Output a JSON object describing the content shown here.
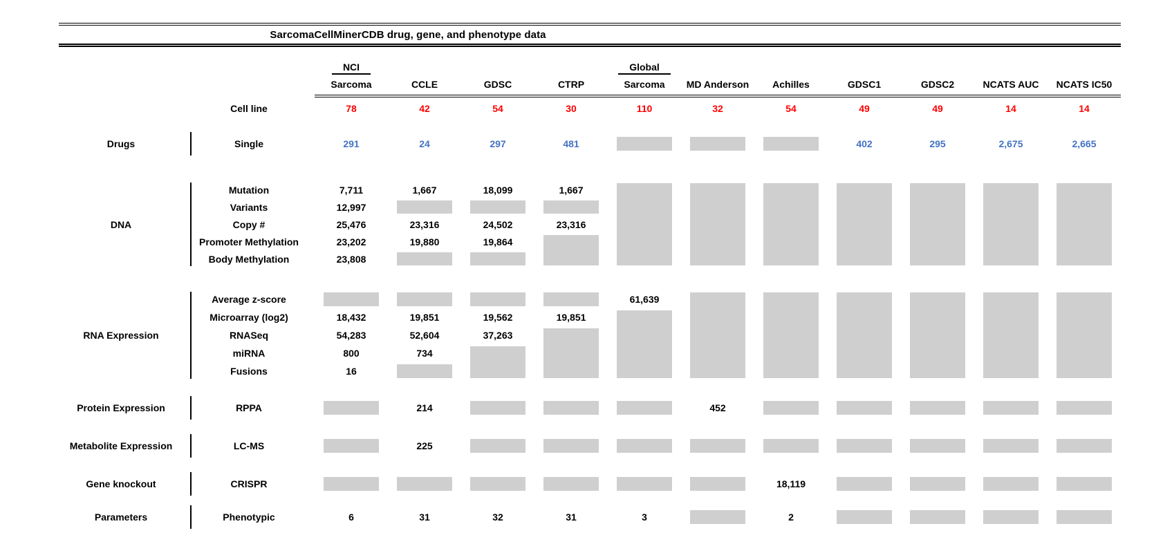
{
  "title": "SarcomaCellMinerCDB drug, gene, and phenotype data",
  "colors": {
    "red": "#ff0000",
    "blue": "#4472c4",
    "gray_box": "#cfcfcf",
    "line": "#000000"
  },
  "columns": [
    {
      "top": "NCI",
      "label": "Sarcoma"
    },
    {
      "label": "CCLE"
    },
    {
      "label": "GDSC"
    },
    {
      "label": "CTRP"
    },
    {
      "top": "Global",
      "label": "Sarcoma"
    },
    {
      "label": "MD Anderson"
    },
    {
      "label": "Achilles"
    },
    {
      "label": "GDSC1"
    },
    {
      "label": "GDSC2"
    },
    {
      "label": "NCATS AUC"
    },
    {
      "label": "NCATS IC50"
    }
  ],
  "cell_line": {
    "label": "Cell line",
    "color": "red",
    "values": [
      "78",
      "42",
      "54",
      "30",
      "110",
      "32",
      "54",
      "49",
      "49",
      "14",
      "14"
    ]
  },
  "groups": [
    {
      "category": "Drugs",
      "rows": [
        {
          "label": "Single",
          "color": "blue",
          "cells": [
            "291",
            "24",
            "297",
            "481",
            "box1",
            "box1",
            "box1",
            "402",
            "295",
            "2,675",
            "2,665"
          ]
        }
      ]
    },
    {
      "category": "DNA",
      "rows": [
        {
          "label": "Mutation",
          "cells": [
            "7,711",
            "1,667",
            "18,099",
            "1,667",
            "box5",
            "box5",
            "box5",
            "box5",
            "box5",
            "box5",
            "box5"
          ]
        },
        {
          "label": "Variants",
          "cells": [
            "12,997",
            "box1",
            "box1",
            "box1",
            "",
            "",
            "",
            "",
            "",
            "",
            ""
          ]
        },
        {
          "label": "Copy #",
          "cells": [
            "25,476",
            "23,316",
            "24,502",
            "23,316",
            "",
            "",
            "",
            "",
            "",
            "",
            ""
          ]
        },
        {
          "label": "Promoter Methylation",
          "cells": [
            "23,202",
            "19,880",
            "19,864",
            "box2",
            "",
            "",
            "",
            "",
            "",
            "",
            ""
          ]
        },
        {
          "label": "Body Methylation",
          "cells": [
            "23,808",
            "box1",
            "box1",
            "",
            "",
            "",
            "",
            "",
            "",
            "",
            ""
          ]
        }
      ]
    },
    {
      "category": "RNA Expression",
      "rows": [
        {
          "label": "Average z-score",
          "cells": [
            "box1",
            "box1",
            "box1",
            "box1",
            "61,639",
            "box5",
            "box5",
            "box5",
            "box5",
            "box5",
            "box5"
          ]
        },
        {
          "label": "Microarray (log2)",
          "cells": [
            "18,432",
            "19,851",
            "19,562",
            "19,851",
            "box4",
            "",
            "",
            "",
            "",
            "",
            ""
          ]
        },
        {
          "label": "RNASeq",
          "cells": [
            "54,283",
            "52,604",
            "37,263",
            "box3",
            "",
            "",
            "",
            "",
            "",
            "",
            ""
          ]
        },
        {
          "label": "miRNA",
          "cells": [
            "800",
            "734",
            "box2",
            "",
            "",
            "",
            "",
            "",
            "",
            "",
            ""
          ]
        },
        {
          "label": "Fusions",
          "cells": [
            "16",
            "box1",
            "",
            "",
            "",
            "",
            "",
            "",
            "",
            "",
            ""
          ]
        }
      ]
    },
    {
      "category": "Protein Expression",
      "rows": [
        {
          "label": "RPPA",
          "cells": [
            "box1",
            "214",
            "box1",
            "box1",
            "box1",
            "452",
            "box1",
            "box1",
            "box1",
            "box1",
            "box1"
          ]
        }
      ]
    },
    {
      "category": "Metabolite Expression",
      "rows": [
        {
          "label": "LC-MS",
          "cells": [
            "box1",
            "225",
            "box1",
            "box1",
            "box1",
            "box1",
            "box1",
            "box1",
            "box1",
            "box1",
            "box1"
          ]
        }
      ]
    },
    {
      "category": "Gene knockout",
      "rows": [
        {
          "label": "CRISPR",
          "cells": [
            "box1",
            "box1",
            "box1",
            "box1",
            "box1",
            "box1",
            "18,119",
            "box1",
            "box1",
            "box1",
            "box1"
          ]
        }
      ]
    },
    {
      "category": "Parameters",
      "rows": [
        {
          "label": "Phenotypic",
          "cells": [
            "6",
            "31",
            "32",
            "31",
            "3",
            "box1",
            "2",
            "box1",
            "box1",
            "box1",
            "box1"
          ]
        }
      ]
    }
  ],
  "chart_data": {
    "type": "table",
    "title": "SarcomaCellMinerCDB drug, gene, and phenotype data",
    "columns": [
      "NCI Sarcoma",
      "CCLE",
      "GDSC",
      "CTRP",
      "Global Sarcoma",
      "MD Anderson",
      "Achilles",
      "GDSC1",
      "GDSC2",
      "NCATS AUC",
      "NCATS IC50"
    ],
    "rows": [
      {
        "category": "",
        "data_type": "Cell line",
        "values": [
          78,
          42,
          54,
          30,
          110,
          32,
          54,
          49,
          49,
          14,
          14
        ]
      },
      {
        "category": "Drugs",
        "data_type": "Single",
        "values": [
          291,
          24,
          297,
          481,
          null,
          null,
          null,
          402,
          295,
          2675,
          2665
        ]
      },
      {
        "category": "DNA",
        "data_type": "Mutation",
        "values": [
          7711,
          1667,
          18099,
          1667,
          null,
          null,
          null,
          null,
          null,
          null,
          null
        ]
      },
      {
        "category": "DNA",
        "data_type": "Variants",
        "values": [
          12997,
          null,
          null,
          null,
          null,
          null,
          null,
          null,
          null,
          null,
          null
        ]
      },
      {
        "category": "DNA",
        "data_type": "Copy #",
        "values": [
          25476,
          23316,
          24502,
          23316,
          null,
          null,
          null,
          null,
          null,
          null,
          null
        ]
      },
      {
        "category": "DNA",
        "data_type": "Promoter Methylation",
        "values": [
          23202,
          19880,
          19864,
          null,
          null,
          null,
          null,
          null,
          null,
          null,
          null
        ]
      },
      {
        "category": "DNA",
        "data_type": "Body Methylation",
        "values": [
          23808,
          null,
          null,
          null,
          null,
          null,
          null,
          null,
          null,
          null,
          null
        ]
      },
      {
        "category": "RNA Expression",
        "data_type": "Average z-score",
        "values": [
          null,
          null,
          null,
          null,
          61639,
          null,
          null,
          null,
          null,
          null,
          null
        ]
      },
      {
        "category": "RNA Expression",
        "data_type": "Microarray (log2)",
        "values": [
          18432,
          19851,
          19562,
          19851,
          null,
          null,
          null,
          null,
          null,
          null,
          null
        ]
      },
      {
        "category": "RNA Expression",
        "data_type": "RNASeq",
        "values": [
          54283,
          52604,
          37263,
          null,
          null,
          null,
          null,
          null,
          null,
          null,
          null
        ]
      },
      {
        "category": "RNA Expression",
        "data_type": "miRNA",
        "values": [
          800,
          734,
          null,
          null,
          null,
          null,
          null,
          null,
          null,
          null,
          null
        ]
      },
      {
        "category": "RNA Expression",
        "data_type": "Fusions",
        "values": [
          16,
          null,
          null,
          null,
          null,
          null,
          null,
          null,
          null,
          null,
          null
        ]
      },
      {
        "category": "Protein Expression",
        "data_type": "RPPA",
        "values": [
          null,
          214,
          null,
          null,
          null,
          452,
          null,
          null,
          null,
          null,
          null
        ]
      },
      {
        "category": "Metabolite Expression",
        "data_type": "LC-MS",
        "values": [
          null,
          225,
          null,
          null,
          null,
          null,
          null,
          null,
          null,
          null,
          null
        ]
      },
      {
        "category": "Gene knockout",
        "data_type": "CRISPR",
        "values": [
          null,
          null,
          null,
          null,
          null,
          null,
          18119,
          null,
          null,
          null,
          null
        ]
      },
      {
        "category": "Parameters",
        "data_type": "Phenotypic",
        "values": [
          6,
          31,
          32,
          31,
          3,
          null,
          2,
          null,
          null,
          null,
          null
        ]
      }
    ]
  }
}
